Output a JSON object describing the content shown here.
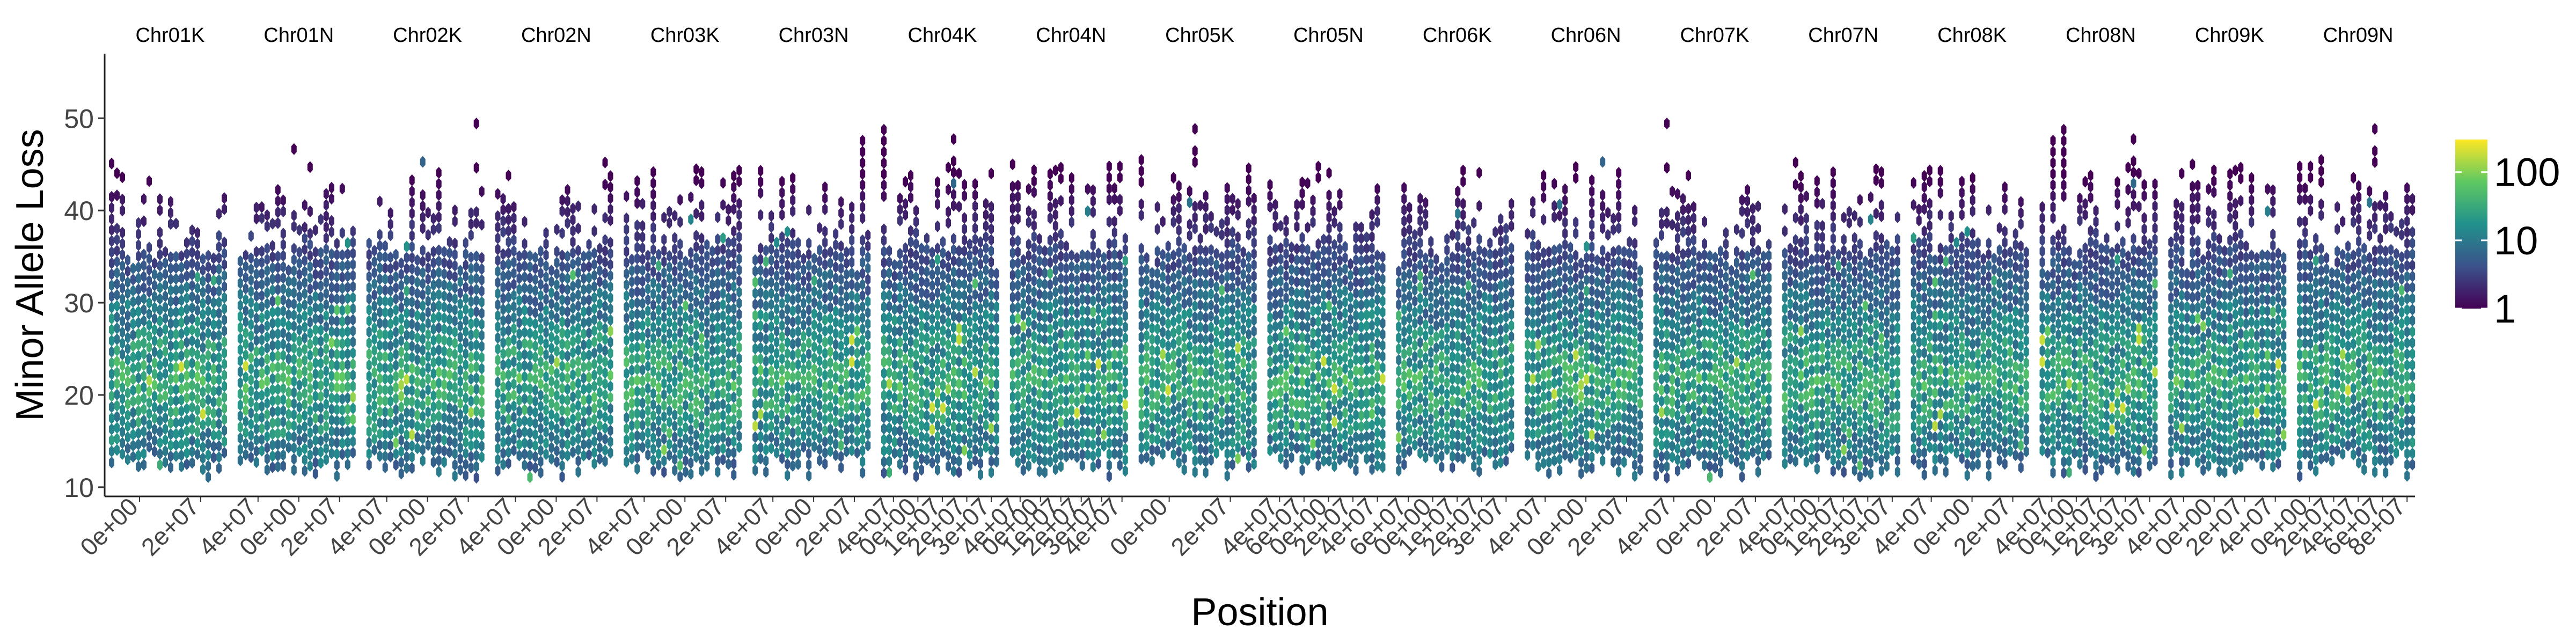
{
  "chart_data": {
    "type": "heatmap",
    "subtype": "hexbin-faceted",
    "xlabel": "Position",
    "ylabel": "Minor Allele Loss",
    "ylim": [
      9,
      57
    ],
    "y_ticks": [
      10,
      20,
      30,
      40,
      50
    ],
    "grid": false,
    "legend": {
      "placement": "right",
      "scale": "log10",
      "ticks": [
        "1",
        "10",
        "100"
      ],
      "max": 300
    },
    "colormap": [
      "#440154",
      "#3b528b",
      "#21918c",
      "#5ec962",
      "#fde725"
    ],
    "facets": [
      {
        "name": "Chr01K",
        "xmax": 38000000,
        "x_tick_labels": [
          "0e+00",
          "2e+07"
        ]
      },
      {
        "name": "Chr01N",
        "xmax": 40000000,
        "x_tick_labels": [
          "4e+07",
          "0e+00",
          "2e+07"
        ]
      },
      {
        "name": "Chr02K",
        "xmax": 40000000,
        "x_tick_labels": [
          "4e+07",
          "0e+00",
          "2e+07"
        ]
      },
      {
        "name": "Chr02N",
        "xmax": 40000000,
        "x_tick_labels": [
          "4e+07",
          "0e+00",
          "2e+07"
        ]
      },
      {
        "name": "Chr03K",
        "xmax": 40000000,
        "x_tick_labels": [
          "4e+07",
          "0e+00",
          "2e+07"
        ]
      },
      {
        "name": "Chr03N",
        "xmax": 40000000,
        "x_tick_labels": [
          "4e+07",
          "0e+00",
          "2e+07"
        ]
      },
      {
        "name": "Chr04K",
        "xmax": 40000000,
        "x_tick_labels": [
          "4e+07",
          "0e+00",
          "1e+07",
          "2e+07",
          "3e+07"
        ]
      },
      {
        "name": "Chr04N",
        "xmax": 40000000,
        "x_tick_labels": [
          "4e+07",
          "0e+00",
          "1e+07",
          "2e+07",
          "3e+07",
          "4e+07"
        ]
      },
      {
        "name": "Chr05K",
        "xmax": 40000000,
        "x_tick_labels": [
          "0e+00",
          "2e+07"
        ]
      },
      {
        "name": "Chr05N",
        "xmax": 40000000,
        "x_tick_labels": [
          "4e+07",
          "6e+07",
          "0e+00",
          "2e+07",
          "4e+07"
        ]
      },
      {
        "name": "Chr06K",
        "xmax": 40000000,
        "x_tick_labels": [
          "6e+07",
          "0e+00",
          "1e+07",
          "2e+07",
          "3e+07"
        ]
      },
      {
        "name": "Chr06N",
        "xmax": 40000000,
        "x_tick_labels": [
          "4e+07",
          "0e+00",
          "2e+07"
        ]
      },
      {
        "name": "Chr07K",
        "xmax": 40000000,
        "x_tick_labels": [
          "4e+07",
          "0e+00",
          "2e+07"
        ]
      },
      {
        "name": "Chr07N",
        "xmax": 40000000,
        "x_tick_labels": [
          "4e+07",
          "0e+00",
          "1e+07",
          "2e+07",
          "3e+07"
        ]
      },
      {
        "name": "Chr08K",
        "xmax": 40000000,
        "x_tick_labels": [
          "4e+07",
          "0e+00",
          "2e+07"
        ]
      },
      {
        "name": "Chr08N",
        "xmax": 40000000,
        "x_tick_labels": [
          "4e+07",
          "0e+00",
          "1e+07",
          "2e+07",
          "3e+07"
        ]
      },
      {
        "name": "Chr09K",
        "xmax": 40000000,
        "x_tick_labels": [
          "4e+07",
          "0e+00",
          "2e+07",
          "4e+07"
        ]
      },
      {
        "name": "Chr09N",
        "xmax": 80000000,
        "x_tick_labels": [
          "0e+00",
          "2e+07",
          "4e+07",
          "6e+07",
          "8e+07"
        ]
      }
    ]
  }
}
